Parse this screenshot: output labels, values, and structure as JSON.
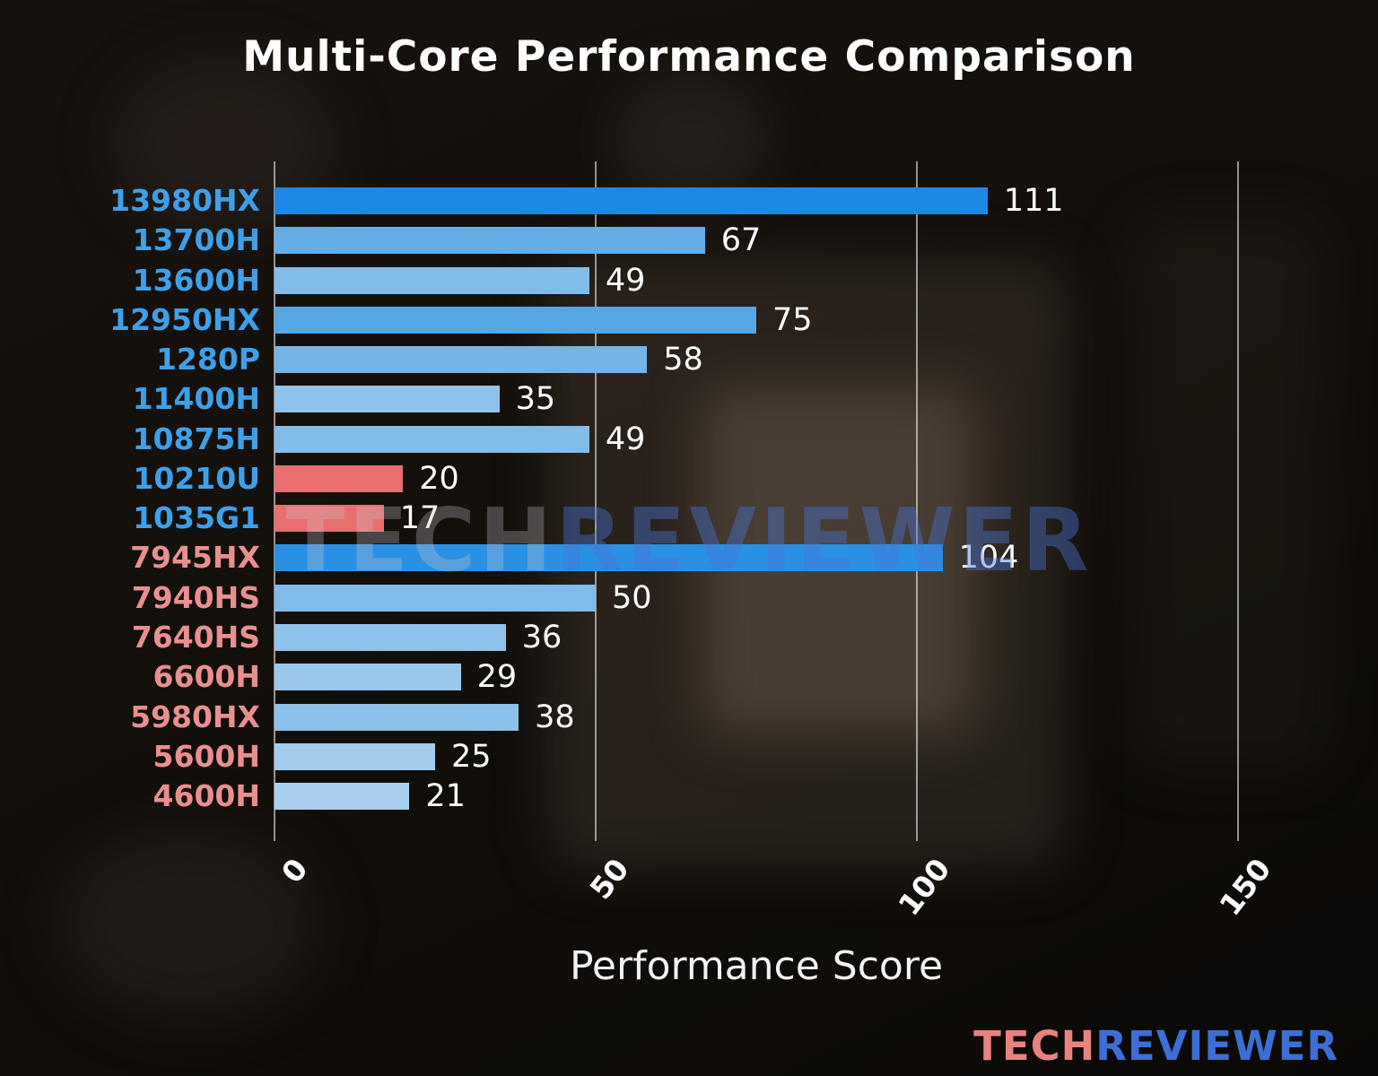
{
  "chart_data": {
    "type": "bar",
    "orientation": "horizontal",
    "title": "Multi-Core Performance Comparison",
    "xlabel": "Performance Score",
    "xlim": [
      0,
      160
    ],
    "xticks": [
      0,
      50,
      100,
      150
    ],
    "grid": true,
    "legend": "none",
    "categories": [
      "13980HX",
      "13700H",
      "13600H",
      "12950HX",
      "1280P",
      "11400H",
      "10875H",
      "10210U",
      "1035G1",
      "7945HX",
      "7940HS",
      "7640HS",
      "6600H",
      "5980HX",
      "5600H",
      "4600H"
    ],
    "values": [
      111,
      67,
      49,
      75,
      58,
      35,
      49,
      20,
      17,
      104,
      50,
      36,
      29,
      38,
      25,
      21
    ],
    "bar_colors": [
      "#1e88e5",
      "#64aee6",
      "#82bce9",
      "#55a7e3",
      "#74b5e7",
      "#8fc3eb",
      "#82bce9",
      "#e96e6e",
      "#e96e6e",
      "#2a90e4",
      "#80bbe9",
      "#8ec2eb",
      "#99c8ec",
      "#8cc1ea",
      "#a2cdee",
      "#a9d1ef"
    ],
    "label_colors": [
      "#3da0e8",
      "#3da0e8",
      "#3da0e8",
      "#3da0e8",
      "#3da0e8",
      "#3da0e8",
      "#3da0e8",
      "#3da0e8",
      "#3da0e8",
      "#e88f8f",
      "#e88f8f",
      "#e88f8f",
      "#e88f8f",
      "#e88f8f",
      "#e88f8f",
      "#e88f8f"
    ],
    "value_label_color": "#ffffff",
    "grid_color": "#bdbdbd",
    "tick_label_color": "#ffffff"
  },
  "watermark": {
    "tech": "TECH",
    "reviewer": "REVIEWER"
  },
  "logo": {
    "tech": "TECH",
    "reviewer": "REVIEWER"
  }
}
